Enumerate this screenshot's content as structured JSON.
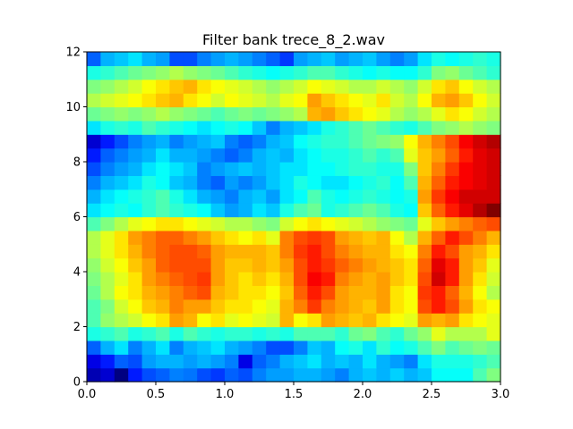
{
  "chart_data": {
    "type": "heatmap",
    "title": "Filter bank trece_8_2.wav",
    "xlabel": "",
    "ylabel": "",
    "xlim": [
      0.0,
      3.0
    ],
    "ylim": [
      0,
      12
    ],
    "x_ticks": [
      "0.0",
      "0.5",
      "1.0",
      "1.5",
      "2.0",
      "2.5",
      "3.0"
    ],
    "y_ticks": [
      "0",
      "2",
      "4",
      "6",
      "8",
      "10",
      "12"
    ],
    "colormap": "jet",
    "value_range": [
      0,
      1
    ],
    "cols": 30,
    "rows": 24,
    "row_order": "bottom-to-top",
    "values": [
      [
        0.05,
        0.08,
        0.0,
        0.15,
        0.2,
        0.22,
        0.25,
        0.24,
        0.2,
        0.18,
        0.22,
        0.2,
        0.25,
        0.28,
        0.28,
        0.3,
        0.3,
        0.28,
        0.25,
        0.3,
        0.32,
        0.3,
        0.33,
        0.3,
        0.32,
        0.38,
        0.38,
        0.38,
        0.45,
        0.5
      ],
      [
        0.1,
        0.15,
        0.22,
        0.2,
        0.28,
        0.3,
        0.3,
        0.28,
        0.3,
        0.28,
        0.25,
        0.1,
        0.22,
        0.25,
        0.3,
        0.32,
        0.35,
        0.3,
        0.32,
        0.3,
        0.35,
        0.3,
        0.28,
        0.25,
        0.35,
        0.4,
        0.4,
        0.4,
        0.42,
        0.45
      ],
      [
        0.22,
        0.3,
        0.35,
        0.25,
        0.3,
        0.35,
        0.25,
        0.3,
        0.32,
        0.35,
        0.3,
        0.28,
        0.25,
        0.2,
        0.2,
        0.25,
        0.32,
        0.3,
        0.38,
        0.4,
        0.35,
        0.42,
        0.38,
        0.4,
        0.45,
        0.5,
        0.45,
        0.48,
        0.5,
        0.48
      ],
      [
        0.4,
        0.42,
        0.45,
        0.4,
        0.42,
        0.45,
        0.4,
        0.45,
        0.42,
        0.4,
        0.42,
        0.42,
        0.4,
        0.42,
        0.4,
        0.45,
        0.45,
        0.45,
        0.42,
        0.48,
        0.5,
        0.45,
        0.42,
        0.48,
        0.52,
        0.6,
        0.55,
        0.55,
        0.55,
        0.6
      ],
      [
        0.45,
        0.52,
        0.55,
        0.58,
        0.62,
        0.65,
        0.72,
        0.7,
        0.62,
        0.65,
        0.6,
        0.62,
        0.6,
        0.58,
        0.7,
        0.62,
        0.65,
        0.72,
        0.7,
        0.68,
        0.7,
        0.65,
        0.62,
        0.6,
        0.72,
        0.7,
        0.72,
        0.65,
        0.62,
        0.6
      ],
      [
        0.45,
        0.5,
        0.58,
        0.62,
        0.68,
        0.7,
        0.75,
        0.72,
        0.72,
        0.68,
        0.65,
        0.65,
        0.62,
        0.6,
        0.7,
        0.75,
        0.82,
        0.75,
        0.72,
        0.7,
        0.68,
        0.72,
        0.65,
        0.62,
        0.8,
        0.85,
        0.8,
        0.72,
        0.65,
        0.62
      ],
      [
        0.48,
        0.55,
        0.62,
        0.65,
        0.7,
        0.72,
        0.75,
        0.78,
        0.8,
        0.7,
        0.68,
        0.65,
        0.65,
        0.62,
        0.68,
        0.78,
        0.85,
        0.8,
        0.72,
        0.7,
        0.7,
        0.72,
        0.65,
        0.62,
        0.82,
        0.85,
        0.78,
        0.7,
        0.62,
        0.55
      ],
      [
        0.5,
        0.55,
        0.6,
        0.65,
        0.72,
        0.75,
        0.78,
        0.8,
        0.82,
        0.72,
        0.68,
        0.65,
        0.68,
        0.65,
        0.7,
        0.8,
        0.88,
        0.85,
        0.75,
        0.72,
        0.7,
        0.72,
        0.68,
        0.65,
        0.8,
        0.92,
        0.85,
        0.72,
        0.65,
        0.58
      ],
      [
        0.52,
        0.58,
        0.62,
        0.68,
        0.72,
        0.78,
        0.8,
        0.8,
        0.8,
        0.72,
        0.68,
        0.68,
        0.7,
        0.68,
        0.72,
        0.8,
        0.85,
        0.82,
        0.78,
        0.75,
        0.72,
        0.7,
        0.68,
        0.65,
        0.78,
        0.9,
        0.85,
        0.72,
        0.68,
        0.6
      ],
      [
        0.55,
        0.6,
        0.65,
        0.7,
        0.75,
        0.78,
        0.8,
        0.8,
        0.78,
        0.72,
        0.7,
        0.7,
        0.7,
        0.68,
        0.75,
        0.82,
        0.85,
        0.8,
        0.75,
        0.72,
        0.7,
        0.7,
        0.65,
        0.62,
        0.75,
        0.85,
        0.8,
        0.72,
        0.7,
        0.65
      ],
      [
        0.55,
        0.6,
        0.65,
        0.72,
        0.75,
        0.78,
        0.78,
        0.75,
        0.72,
        0.68,
        0.65,
        0.62,
        0.65,
        0.6,
        0.75,
        0.8,
        0.82,
        0.8,
        0.72,
        0.7,
        0.68,
        0.7,
        0.62,
        0.55,
        0.7,
        0.78,
        0.85,
        0.8,
        0.75,
        0.7
      ],
      [
        0.45,
        0.5,
        0.55,
        0.6,
        0.62,
        0.65,
        0.65,
        0.62,
        0.6,
        0.58,
        0.55,
        0.55,
        0.52,
        0.5,
        0.58,
        0.62,
        0.65,
        0.62,
        0.6,
        0.58,
        0.55,
        0.52,
        0.5,
        0.48,
        0.6,
        0.68,
        0.72,
        0.75,
        0.78,
        0.8
      ],
      [
        0.35,
        0.38,
        0.4,
        0.38,
        0.42,
        0.45,
        0.42,
        0.4,
        0.38,
        0.32,
        0.28,
        0.3,
        0.35,
        0.32,
        0.4,
        0.45,
        0.48,
        0.4,
        0.42,
        0.45,
        0.48,
        0.45,
        0.4,
        0.38,
        0.68,
        0.78,
        0.85,
        0.9,
        0.95,
        1.0
      ],
      [
        0.3,
        0.35,
        0.38,
        0.4,
        0.42,
        0.45,
        0.4,
        0.35,
        0.3,
        0.28,
        0.25,
        0.3,
        0.32,
        0.28,
        0.35,
        0.38,
        0.45,
        0.4,
        0.38,
        0.4,
        0.42,
        0.4,
        0.38,
        0.4,
        0.72,
        0.82,
        0.88,
        0.92,
        0.92,
        0.92
      ],
      [
        0.25,
        0.3,
        0.32,
        0.35,
        0.4,
        0.38,
        0.32,
        0.3,
        0.25,
        0.22,
        0.28,
        0.25,
        0.28,
        0.32,
        0.35,
        0.4,
        0.38,
        0.35,
        0.35,
        0.38,
        0.4,
        0.42,
        0.38,
        0.45,
        0.7,
        0.78,
        0.85,
        0.88,
        0.9,
        0.92
      ],
      [
        0.2,
        0.25,
        0.28,
        0.3,
        0.35,
        0.38,
        0.35,
        0.32,
        0.25,
        0.28,
        0.3,
        0.32,
        0.3,
        0.32,
        0.35,
        0.35,
        0.38,
        0.38,
        0.4,
        0.42,
        0.42,
        0.4,
        0.4,
        0.5,
        0.68,
        0.75,
        0.82,
        0.88,
        0.9,
        0.92
      ],
      [
        0.15,
        0.22,
        0.25,
        0.28,
        0.3,
        0.35,
        0.3,
        0.3,
        0.28,
        0.25,
        0.22,
        0.25,
        0.3,
        0.32,
        0.3,
        0.35,
        0.38,
        0.4,
        0.4,
        0.42,
        0.45,
        0.42,
        0.45,
        0.6,
        0.68,
        0.72,
        0.78,
        0.85,
        0.9,
        0.92
      ],
      [
        0.08,
        0.15,
        0.2,
        0.25,
        0.28,
        0.3,
        0.25,
        0.28,
        0.3,
        0.32,
        0.25,
        0.22,
        0.25,
        0.3,
        0.32,
        0.38,
        0.4,
        0.42,
        0.42,
        0.45,
        0.48,
        0.5,
        0.52,
        0.62,
        0.7,
        0.75,
        0.8,
        0.88,
        0.92,
        0.95
      ],
      [
        0.35,
        0.4,
        0.42,
        0.4,
        0.45,
        0.42,
        0.4,
        0.38,
        0.35,
        0.38,
        0.4,
        0.38,
        0.32,
        0.25,
        0.3,
        0.32,
        0.35,
        0.4,
        0.42,
        0.45,
        0.48,
        0.45,
        0.42,
        0.4,
        0.45,
        0.5,
        0.52,
        0.55,
        0.52,
        0.5
      ],
      [
        0.48,
        0.5,
        0.52,
        0.5,
        0.52,
        0.55,
        0.52,
        0.5,
        0.48,
        0.45,
        0.48,
        0.5,
        0.48,
        0.5,
        0.52,
        0.55,
        0.7,
        0.72,
        0.68,
        0.65,
        0.62,
        0.6,
        0.55,
        0.52,
        0.55,
        0.6,
        0.65,
        0.62,
        0.58,
        0.55
      ],
      [
        0.55,
        0.58,
        0.6,
        0.62,
        0.65,
        0.68,
        0.7,
        0.65,
        0.62,
        0.58,
        0.62,
        0.6,
        0.58,
        0.55,
        0.6,
        0.62,
        0.72,
        0.68,
        0.65,
        0.62,
        0.6,
        0.65,
        0.58,
        0.55,
        0.62,
        0.7,
        0.72,
        0.68,
        0.62,
        0.58
      ],
      [
        0.5,
        0.52,
        0.55,
        0.58,
        0.62,
        0.65,
        0.68,
        0.7,
        0.65,
        0.62,
        0.6,
        0.58,
        0.55,
        0.52,
        0.55,
        0.58,
        0.62,
        0.6,
        0.58,
        0.55,
        0.55,
        0.58,
        0.55,
        0.52,
        0.58,
        0.65,
        0.68,
        0.62,
        0.58,
        0.55
      ],
      [
        0.4,
        0.42,
        0.45,
        0.48,
        0.5,
        0.52,
        0.55,
        0.52,
        0.5,
        0.48,
        0.45,
        0.42,
        0.4,
        0.38,
        0.4,
        0.42,
        0.45,
        0.45,
        0.42,
        0.4,
        0.38,
        0.4,
        0.38,
        0.38,
        0.42,
        0.5,
        0.52,
        0.48,
        0.45,
        0.42
      ],
      [
        0.22,
        0.3,
        0.32,
        0.35,
        0.3,
        0.28,
        0.2,
        0.2,
        0.25,
        0.28,
        0.3,
        0.28,
        0.25,
        0.22,
        0.18,
        0.28,
        0.3,
        0.32,
        0.28,
        0.3,
        0.32,
        0.28,
        0.25,
        0.28,
        0.35,
        0.4,
        0.38,
        0.4,
        0.42,
        0.4
      ]
    ]
  }
}
